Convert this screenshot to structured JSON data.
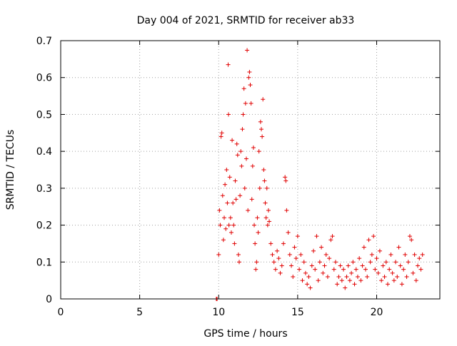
{
  "chart_data": {
    "type": "scatter",
    "title": "Day 004 of 2021, SRMTID for receiver ab33",
    "xlabel": "GPS time / hours",
    "ylabel": "SRMTID / TECUs",
    "xlim": [
      0,
      24
    ],
    "ylim": [
      0,
      0.7
    ],
    "xticks": [
      0,
      5,
      10,
      15,
      20
    ],
    "yticks": [
      0,
      0.1,
      0.2,
      0.3,
      0.4,
      0.5,
      0.6,
      0.7
    ],
    "xtick_labels": [
      "0",
      "5",
      "10",
      "15",
      "20"
    ],
    "ytick_labels": [
      "0",
      "0.1",
      "0.2",
      "0.3",
      "0.4",
      "0.5",
      "0.6",
      "0.7"
    ],
    "grid": true,
    "marker": "+",
    "color": "#e00000",
    "series": [
      {
        "name": "ab33",
        "points": [
          [
            9.85,
            0.0
          ],
          [
            9.9,
            0.0
          ],
          [
            10.0,
            0.12
          ],
          [
            10.05,
            0.24
          ],
          [
            10.1,
            0.2
          ],
          [
            10.15,
            0.44
          ],
          [
            10.2,
            0.45
          ],
          [
            10.25,
            0.28
          ],
          [
            10.3,
            0.16
          ],
          [
            10.35,
            0.22
          ],
          [
            10.4,
            0.31
          ],
          [
            10.45,
            0.19
          ],
          [
            10.5,
            0.35
          ],
          [
            10.55,
            0.26
          ],
          [
            10.6,
            0.635
          ],
          [
            10.62,
            0.5
          ],
          [
            10.65,
            0.2
          ],
          [
            10.7,
            0.33
          ],
          [
            10.75,
            0.22
          ],
          [
            10.8,
            0.18
          ],
          [
            10.85,
            0.43
          ],
          [
            10.9,
            0.26
          ],
          [
            10.95,
            0.2
          ],
          [
            11.0,
            0.15
          ],
          [
            11.05,
            0.32
          ],
          [
            11.1,
            0.27
          ],
          [
            11.15,
            0.42
          ],
          [
            11.2,
            0.39
          ],
          [
            11.25,
            0.12
          ],
          [
            11.3,
            0.1
          ],
          [
            11.35,
            0.28
          ],
          [
            11.4,
            0.4
          ],
          [
            11.45,
            0.36
          ],
          [
            11.5,
            0.46
          ],
          [
            11.55,
            0.5
          ],
          [
            11.6,
            0.57
          ],
          [
            11.65,
            0.3
          ],
          [
            11.7,
            0.53
          ],
          [
            11.75,
            0.38
          ],
          [
            11.8,
            0.674
          ],
          [
            11.85,
            0.24
          ],
          [
            11.9,
            0.6
          ],
          [
            11.95,
            0.615
          ],
          [
            12.0,
            0.58
          ],
          [
            12.05,
            0.53
          ],
          [
            12.1,
            0.27
          ],
          [
            12.15,
            0.36
          ],
          [
            12.2,
            0.41
          ],
          [
            12.25,
            0.2
          ],
          [
            12.3,
            0.15
          ],
          [
            12.35,
            0.08
          ],
          [
            12.4,
            0.1
          ],
          [
            12.45,
            0.22
          ],
          [
            12.5,
            0.18
          ],
          [
            12.55,
            0.4
          ],
          [
            12.6,
            0.3
          ],
          [
            12.65,
            0.48
          ],
          [
            12.7,
            0.46
          ],
          [
            12.75,
            0.44
          ],
          [
            12.8,
            0.541
          ],
          [
            12.85,
            0.35
          ],
          [
            12.9,
            0.32
          ],
          [
            12.95,
            0.26
          ],
          [
            13.0,
            0.22
          ],
          [
            13.05,
            0.3
          ],
          [
            13.1,
            0.2
          ],
          [
            13.15,
            0.24
          ],
          [
            13.2,
            0.21
          ],
          [
            13.3,
            0.15
          ],
          [
            13.4,
            0.12
          ],
          [
            13.5,
            0.1
          ],
          [
            13.6,
            0.08
          ],
          [
            13.7,
            0.13
          ],
          [
            13.8,
            0.11
          ],
          [
            13.9,
            0.07
          ],
          [
            14.0,
            0.09
          ],
          [
            14.1,
            0.15
          ],
          [
            14.2,
            0.33
          ],
          [
            14.25,
            0.32
          ],
          [
            14.3,
            0.24
          ],
          [
            14.4,
            0.18
          ],
          [
            14.5,
            0.12
          ],
          [
            14.6,
            0.09
          ],
          [
            14.7,
            0.06
          ],
          [
            14.8,
            0.14
          ],
          [
            14.9,
            0.11
          ],
          [
            15.0,
            0.17
          ],
          [
            15.1,
            0.08
          ],
          [
            15.2,
            0.12
          ],
          [
            15.3,
            0.05
          ],
          [
            15.4,
            0.1
          ],
          [
            15.5,
            0.07
          ],
          [
            15.6,
            0.04
          ],
          [
            15.7,
            0.06
          ],
          [
            15.8,
            0.03
          ],
          [
            15.9,
            0.09
          ],
          [
            16.0,
            0.13
          ],
          [
            16.1,
            0.08
          ],
          [
            16.2,
            0.17
          ],
          [
            16.3,
            0.05
          ],
          [
            16.4,
            0.1
          ],
          [
            16.5,
            0.14
          ],
          [
            16.6,
            0.07
          ],
          [
            16.7,
            0.09
          ],
          [
            16.8,
            0.12
          ],
          [
            16.9,
            0.06
          ],
          [
            17.0,
            0.11
          ],
          [
            17.1,
            0.16
          ],
          [
            17.2,
            0.17
          ],
          [
            17.3,
            0.08
          ],
          [
            17.4,
            0.1
          ],
          [
            17.5,
            0.04
          ],
          [
            17.6,
            0.06
          ],
          [
            17.7,
            0.09
          ],
          [
            17.8,
            0.05
          ],
          [
            17.9,
            0.08
          ],
          [
            18.0,
            0.03
          ],
          [
            18.1,
            0.06
          ],
          [
            18.2,
            0.09
          ],
          [
            18.3,
            0.05
          ],
          [
            18.4,
            0.07
          ],
          [
            18.5,
            0.1
          ],
          [
            18.6,
            0.04
          ],
          [
            18.7,
            0.08
          ],
          [
            18.8,
            0.06
          ],
          [
            18.9,
            0.11
          ],
          [
            19.0,
            0.05
          ],
          [
            19.1,
            0.09
          ],
          [
            19.2,
            0.14
          ],
          [
            19.3,
            0.08
          ],
          [
            19.4,
            0.06
          ],
          [
            19.5,
            0.16
          ],
          [
            19.6,
            0.1
          ],
          [
            19.7,
            0.12
          ],
          [
            19.8,
            0.17
          ],
          [
            19.9,
            0.08
          ],
          [
            20.0,
            0.11
          ],
          [
            20.1,
            0.07
          ],
          [
            20.2,
            0.13
          ],
          [
            20.3,
            0.05
          ],
          [
            20.4,
            0.09
          ],
          [
            20.5,
            0.06
          ],
          [
            20.6,
            0.1
          ],
          [
            20.7,
            0.04
          ],
          [
            20.8,
            0.08
          ],
          [
            20.9,
            0.12
          ],
          [
            21.0,
            0.07
          ],
          [
            21.1,
            0.05
          ],
          [
            21.2,
            0.1
          ],
          [
            21.3,
            0.06
          ],
          [
            21.4,
            0.14
          ],
          [
            21.5,
            0.09
          ],
          [
            21.6,
            0.04
          ],
          [
            21.7,
            0.08
          ],
          [
            21.8,
            0.12
          ],
          [
            21.9,
            0.06
          ],
          [
            22.0,
            0.1
          ],
          [
            22.1,
            0.17
          ],
          [
            22.2,
            0.16
          ],
          [
            22.3,
            0.07
          ],
          [
            22.4,
            0.12
          ],
          [
            22.5,
            0.05
          ],
          [
            22.6,
            0.09
          ],
          [
            22.7,
            0.11
          ],
          [
            22.8,
            0.08
          ],
          [
            22.9,
            0.12
          ]
        ]
      }
    ]
  }
}
